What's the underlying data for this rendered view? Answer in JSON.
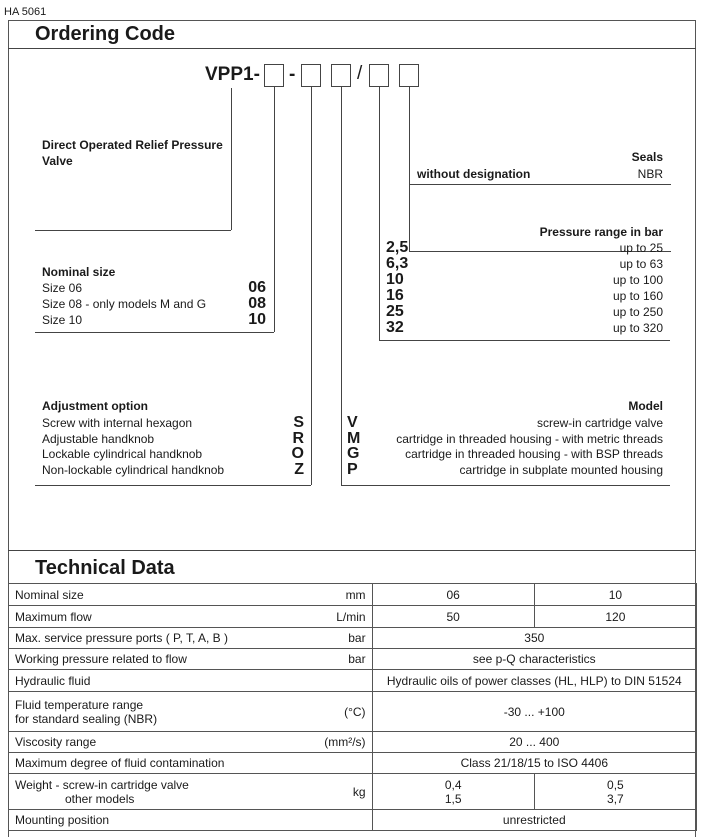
{
  "doc_id": "HA 5061",
  "ordering": {
    "title": "Ordering Code",
    "code_prefix": "VPP1-",
    "sep1": "-",
    "sep2": "/",
    "product": "Direct Operated Relief Pressure Valve",
    "seals": {
      "title": "Seals",
      "label": "without designation",
      "value": "NBR"
    },
    "pressure": {
      "title": "Pressure range in bar",
      "items": [
        {
          "code": "2,5",
          "desc": "up to 25"
        },
        {
          "code": "6,3",
          "desc": "up to 63"
        },
        {
          "code": "10",
          "desc": "up to 100"
        },
        {
          "code": "16",
          "desc": "up to 160"
        },
        {
          "code": "25",
          "desc": "up to 250"
        },
        {
          "code": "32",
          "desc": "up to 320"
        }
      ]
    },
    "nominal": {
      "title": "Nominal size",
      "items": [
        {
          "desc": "Size 06",
          "code": "06"
        },
        {
          "desc": "Size 08 - only models M and G",
          "code": "08"
        },
        {
          "desc": "Size 10",
          "code": "10"
        }
      ]
    },
    "adjustment": {
      "title": "Adjustment option",
      "items": [
        {
          "desc": "Screw with internal hexagon",
          "code": "S"
        },
        {
          "desc": "Adjustable handknob",
          "code": "R"
        },
        {
          "desc": "Lockable cylindrical handknob",
          "code": "O"
        },
        {
          "desc": "Non-lockable cylindrical handknob",
          "code": "Z"
        }
      ]
    },
    "model": {
      "title": "Model",
      "items": [
        {
          "code": "V",
          "desc": "screw-in cartridge valve"
        },
        {
          "code": "M",
          "desc": "cartridge in threaded housing - with metric threads"
        },
        {
          "code": "G",
          "desc": "cartridge in threaded housing - with BSP threads"
        },
        {
          "code": "P",
          "desc": "cartridge in subplate mounted housing"
        }
      ]
    }
  },
  "technical": {
    "title": "Technical Data",
    "rows": [
      {
        "label": "Nominal size",
        "unit": "mm",
        "v1": "06",
        "v2": "10"
      },
      {
        "label": "Maximum flow",
        "unit": "L/min",
        "v1": "50",
        "v2": "120"
      },
      {
        "label": "Max. service pressure ports ( P, T, A, B )",
        "unit": "bar",
        "v": "350"
      },
      {
        "label": "Working pressure related to flow",
        "unit": "bar",
        "v": "see p-Q characteristics"
      },
      {
        "label": "Hydraulic fluid",
        "unit": "",
        "v": "Hydraulic oils of power classes (HL, HLP) to DIN 51524"
      },
      {
        "label": "Fluid temperature range",
        "label2": "for standard sealing (NBR)",
        "unit": "(°C)",
        "v": "-30 ... +100"
      },
      {
        "label": "Viscosity range",
        "unit": "(mm²/s)",
        "v": "20 ... 400"
      },
      {
        "label": "Maximum degree of fluid contamination",
        "unit": "",
        "v": "Class 21/18/15 to ISO 4406"
      },
      {
        "label": "Weight - screw-in cartridge valve",
        "label2": "other models",
        "unit": "kg",
        "v1": "0,4",
        "v1b": "1,5",
        "v2": "0,5",
        "v2b": "3,7"
      },
      {
        "label": "Mounting position",
        "unit": "",
        "v": "unrestricted"
      }
    ]
  }
}
